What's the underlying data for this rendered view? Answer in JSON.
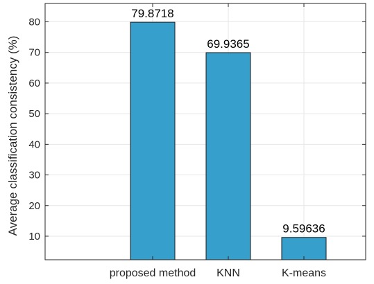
{
  "chart_data": {
    "type": "bar",
    "categories": [
      "proposed method",
      "KNN",
      "K-means"
    ],
    "values": [
      79.8718,
      69.9365,
      9.59636
    ],
    "value_labels": [
      "79.8718",
      "69.9365",
      "9.59636"
    ],
    "title": "",
    "xlabel": "",
    "ylabel": "Average classification consistency (%)",
    "ylim": [
      2.3,
      86
    ],
    "yticks": [
      10,
      20,
      30,
      40,
      50,
      60,
      70,
      80
    ],
    "grid": true,
    "bar_color": "#379fcc",
    "bar_edge_color": "#1a1a1a"
  }
}
